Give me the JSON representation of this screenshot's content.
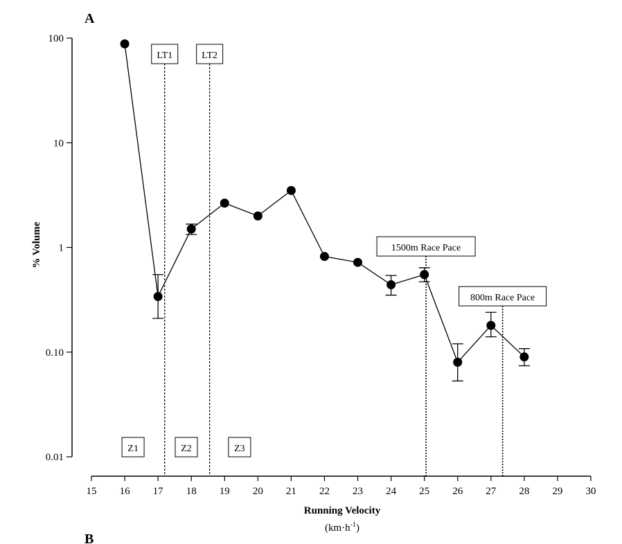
{
  "panel_labels": {
    "top": "A",
    "bottom": "B"
  },
  "chart_data": {
    "type": "line",
    "yscale": "log",
    "title": "",
    "xlabel": "Running Velocity",
    "xunits_base": "(km·h",
    "xunits_sup": "-1",
    "xunits_close": ")",
    "ylabel": "% Volume",
    "xlim": [
      15,
      30
    ],
    "ylim": [
      0.01,
      100
    ],
    "xticks": [
      15,
      16,
      17,
      18,
      19,
      20,
      21,
      22,
      23,
      24,
      25,
      26,
      27,
      28,
      29,
      30
    ],
    "yticks": [
      {
        "value": 0.01,
        "label": "0.01"
      },
      {
        "value": 0.1,
        "label": "0.10"
      },
      {
        "value": 1,
        "label": "1"
      },
      {
        "value": 10,
        "label": "10"
      },
      {
        "value": 100,
        "label": "100"
      }
    ],
    "series": [
      {
        "name": "% Volume",
        "x": [
          16,
          17,
          18,
          19,
          20,
          21,
          22,
          23,
          24,
          25,
          26,
          27,
          28
        ],
        "y": [
          88,
          0.34,
          1.5,
          2.65,
          2.0,
          3.5,
          0.82,
          0.72,
          0.44,
          0.55,
          0.08,
          0.18,
          0.09
        ],
        "error_low": [
          null,
          0.21,
          1.33,
          null,
          null,
          null,
          null,
          null,
          0.35,
          0.47,
          0.053,
          0.14,
          0.074
        ],
        "error_high": [
          null,
          0.55,
          1.67,
          null,
          null,
          null,
          null,
          null,
          0.54,
          0.64,
          0.12,
          0.24,
          0.108
        ]
      }
    ],
    "reference_lines": [
      {
        "label": "LT1",
        "x": 17.2,
        "label_at": 17.2
      },
      {
        "label": "LT2",
        "x": 18.55,
        "label_at": 18.55
      },
      {
        "label": "1500m Race Pace",
        "x": 25.05,
        "label_at": 25.05
      },
      {
        "label": "800m Race Pace",
        "x": 27.35,
        "label_at": 27.35
      }
    ],
    "zones": [
      {
        "label": "Z1",
        "x": 16.25
      },
      {
        "label": "Z2",
        "x": 17.85
      },
      {
        "label": "Z3",
        "x": 19.45
      }
    ]
  }
}
